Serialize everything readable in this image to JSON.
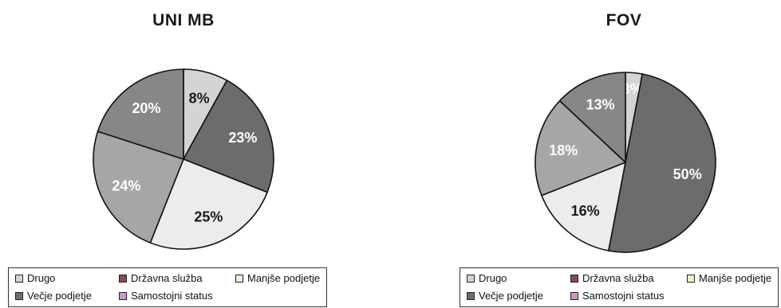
{
  "legend": [
    {
      "label": "Drugo",
      "color": "#c9d6df"
    },
    {
      "label": "Državna služba",
      "color": "#8a4b4b"
    },
    {
      "label": "Manjše podjetje",
      "color": "#f2ecd6"
    },
    {
      "label": "Večje podjetje",
      "color": "#6e6e6e"
    },
    {
      "label": "Samostojni status",
      "color": "#c79ac2"
    }
  ],
  "chart_data": [
    {
      "type": "pie",
      "title": "UNI MB",
      "slices": [
        {
          "label": "8%",
          "value": 8,
          "color": "#d4d4d4",
          "text_color": "#1a1a1a"
        },
        {
          "label": "23%",
          "value": 23,
          "color": "#6c6c6c",
          "text_color": "#ffffff"
        },
        {
          "label": "25%",
          "value": 25,
          "color": "#ececec",
          "text_color": "#1a1a1a"
        },
        {
          "label": "24%",
          "value": 24,
          "color": "#a6a6a6",
          "text_color": "#ffffff"
        },
        {
          "label": "20%",
          "value": 20,
          "color": "#878787",
          "text_color": "#ffffff"
        }
      ]
    },
    {
      "type": "pie",
      "title": "FOV",
      "slices": [
        {
          "label": "3%",
          "value": 3,
          "color": "#d4d4d4",
          "text_color": "#ffffff"
        },
        {
          "label": "50%",
          "value": 50,
          "color": "#6c6c6c",
          "text_color": "#ffffff"
        },
        {
          "label": "16%",
          "value": 16,
          "color": "#ececec",
          "text_color": "#1a1a1a"
        },
        {
          "label": "18%",
          "value": 18,
          "color": "#a6a6a6",
          "text_color": "#ffffff"
        },
        {
          "label": "13%",
          "value": 13,
          "color": "#878787",
          "text_color": "#ffffff"
        }
      ]
    }
  ]
}
